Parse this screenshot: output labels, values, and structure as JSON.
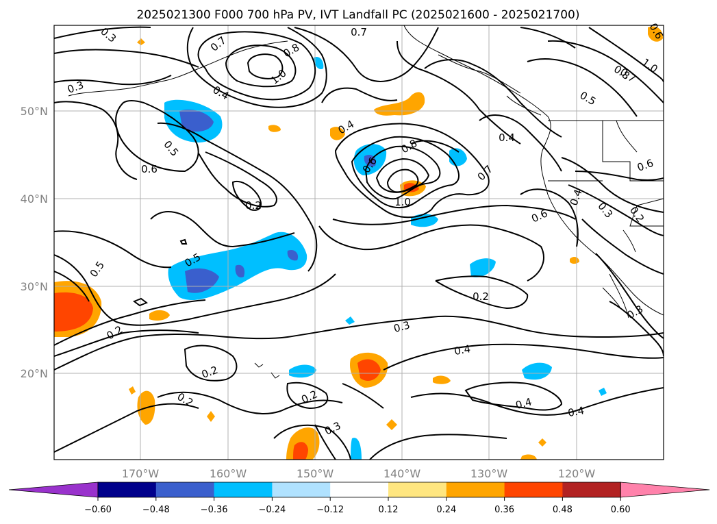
{
  "title": "2025021300 F000 700 hPa PV, IVT Landfall PC (2025021600 - 2025021700)",
  "lon_labels": [
    "170°W",
    "160°W",
    "150°W",
    "140°W",
    "130°W",
    "120°W"
  ],
  "lat_labels": [
    "50°N",
    "40°N",
    "30°N",
    "20°N"
  ],
  "colorbar": {
    "colors": [
      "#9932cc",
      "#00008b",
      "#3a5fcd",
      "#00bfff",
      "#b0e2ff",
      "#ffffff",
      "#ffe680",
      "#ffa500",
      "#ff4500",
      "#b22222",
      "#ff82ab"
    ],
    "ticks": [
      "−0.60",
      "−0.48",
      "−0.36",
      "−0.24",
      "−0.12",
      "0.12",
      "0.24",
      "0.36",
      "0.48",
      "0.60"
    ]
  },
  "contour_labels": [
    {
      "text": "0.3"
    },
    {
      "text": "0.7"
    },
    {
      "text": "0.8"
    },
    {
      "text": "1.0"
    },
    {
      "text": "0.7"
    },
    {
      "text": "0.8"
    },
    {
      "text": "0.3"
    },
    {
      "text": "0.4"
    },
    {
      "text": "0.7"
    },
    {
      "text": "1.0"
    },
    {
      "text": "0.5"
    },
    {
      "text": "0.4"
    },
    {
      "text": "0.5"
    },
    {
      "text": "0.6"
    },
    {
      "text": "0.8"
    },
    {
      "text": "0.6"
    },
    {
      "text": "0.7"
    },
    {
      "text": "0.6"
    },
    {
      "text": "0.4"
    },
    {
      "text": "0.2"
    },
    {
      "text": "1.0"
    },
    {
      "text": "0.6"
    },
    {
      "text": "0.4"
    },
    {
      "text": "0.3"
    },
    {
      "text": "0.2"
    },
    {
      "text": "0.5"
    },
    {
      "text": "0.5"
    },
    {
      "text": "0.2"
    },
    {
      "text": "0.2"
    },
    {
      "text": "0.3"
    },
    {
      "text": "0.3"
    },
    {
      "text": "0.4"
    },
    {
      "text": "0.2"
    },
    {
      "text": "0.2"
    },
    {
      "text": "0.4"
    },
    {
      "text": "0.2"
    },
    {
      "text": "0.3"
    },
    {
      "text": "0.6"
    }
  ]
}
